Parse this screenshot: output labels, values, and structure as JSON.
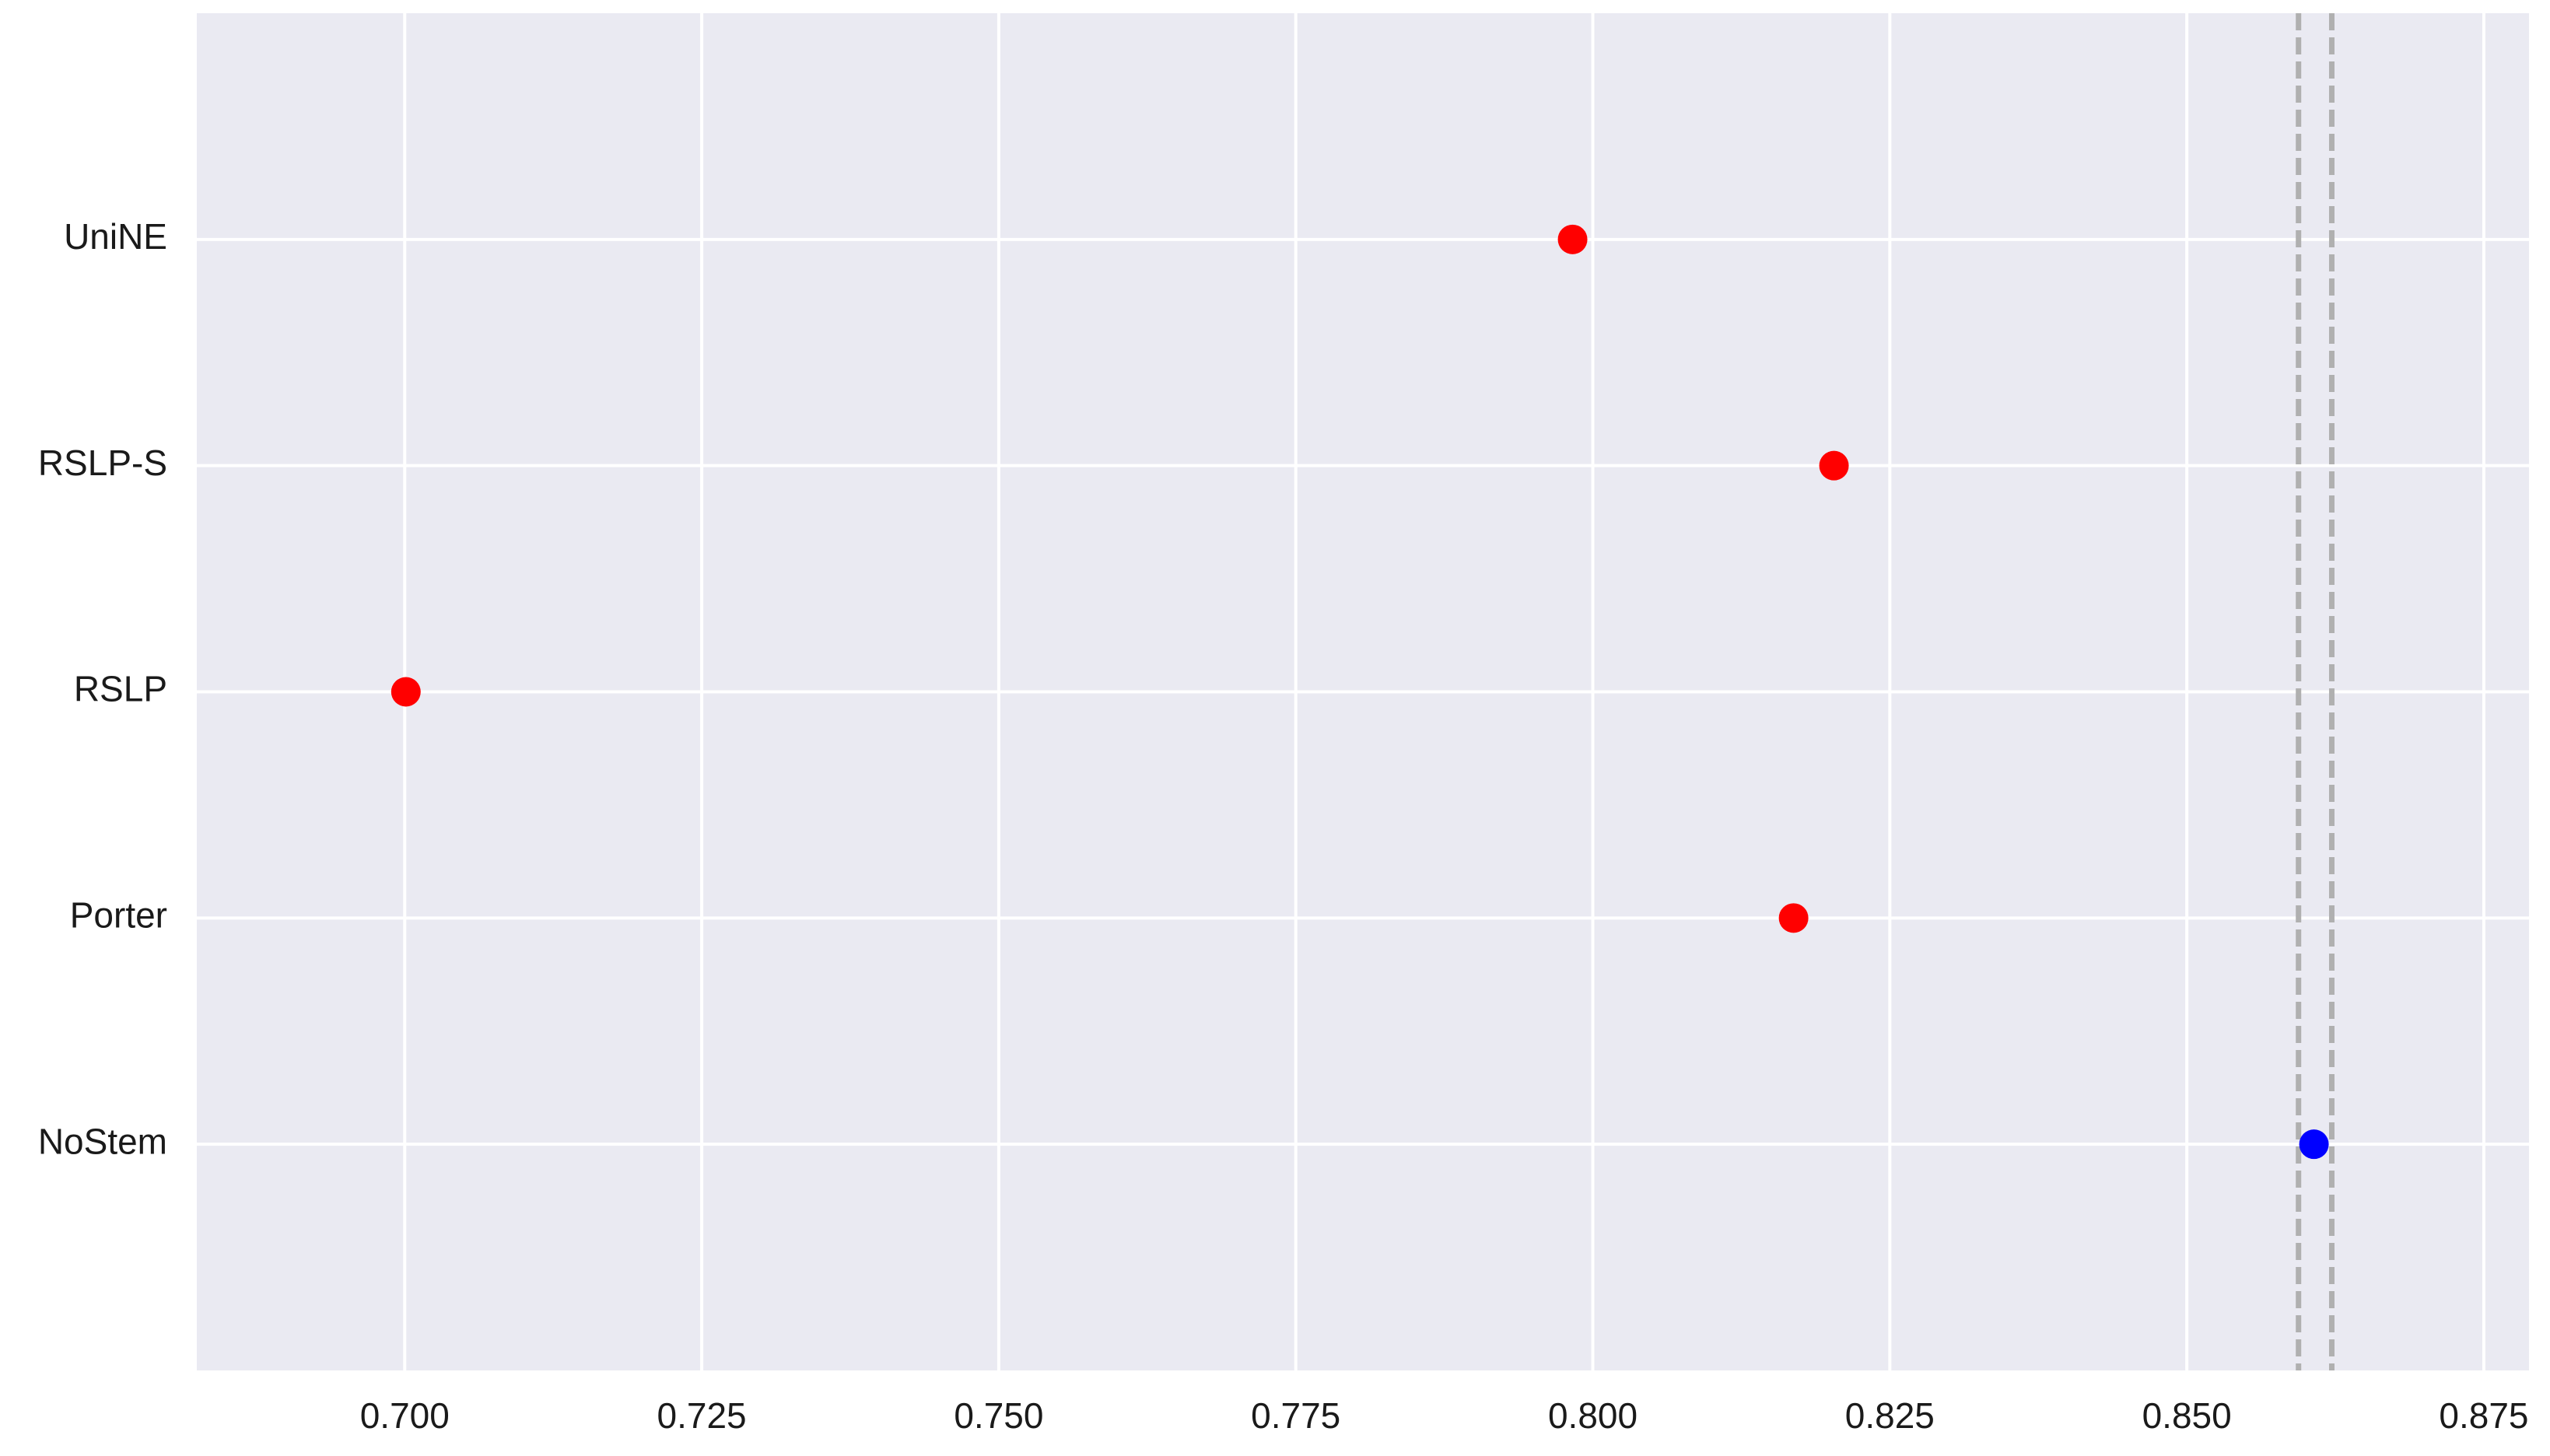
{
  "chart_data": {
    "type": "dot",
    "categories": [
      "UniNE",
      "RSLP-S",
      "RSLP",
      "Porter",
      "NoStem"
    ],
    "values": [
      0.7983,
      0.8203,
      0.7001,
      0.8169,
      0.8607
    ],
    "colors": [
      "#ff0000",
      "#ff0000",
      "#ff0000",
      "#ff0000",
      "#0000ff"
    ],
    "reference_lines": [
      0.8594,
      0.8622
    ],
    "reference_color": "#b0b0b0",
    "xlim": [
      0.6825,
      0.8788
    ],
    "xticks": [
      {
        "value": 0.7,
        "label": "0.700"
      },
      0.725,
      {
        "value": 0.75,
        "label": "0.750"
      },
      0.775,
      {
        "value": 0.8,
        "label": "0.800"
      },
      0.825,
      {
        "value": 0.85,
        "label": "0.850"
      },
      0.875
    ],
    "grid": true
  }
}
